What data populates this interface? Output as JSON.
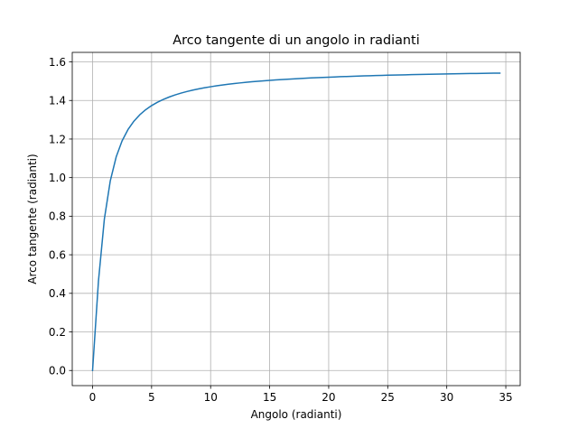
{
  "chart_data": {
    "type": "line",
    "title": "Arco tangente di un angolo in radianti",
    "xlabel": "Angolo (radianti)",
    "ylabel": "Arco tangente (radianti)",
    "xlim": [
      -1.72,
      36.22
    ],
    "ylim": [
      -0.0785,
      1.6493
    ],
    "xticks": [
      0,
      5,
      10,
      15,
      20,
      25,
      30,
      35
    ],
    "yticks": [
      0.0,
      0.2,
      0.4,
      0.6,
      0.8,
      1.0,
      1.2,
      1.4,
      1.6
    ],
    "xtick_labels": [
      "0",
      "5",
      "10",
      "15",
      "20",
      "25",
      "30",
      "35"
    ],
    "ytick_labels": [
      "0.0",
      "0.2",
      "0.4",
      "0.6",
      "0.8",
      "1.0",
      "1.2",
      "1.4",
      "1.6"
    ],
    "grid": true,
    "legend": "none",
    "line_color": "#1f77b4",
    "series": [
      {
        "x": [
          0,
          0.5,
          1.0,
          1.5,
          2.0,
          2.5,
          3.0,
          3.5,
          4.0,
          4.5,
          5.0,
          5.5,
          6.0,
          6.5,
          7.0,
          7.5,
          8.0,
          8.5,
          9.0,
          9.5,
          10.0,
          10.5,
          11.0,
          11.5,
          12.0,
          12.5,
          13.0,
          13.5,
          14.0,
          14.5,
          15.0,
          15.5,
          16.0,
          16.5,
          17.0,
          17.5,
          18.0,
          18.5,
          19.0,
          19.5,
          20.0,
          20.5,
          21.0,
          21.5,
          22.0,
          22.5,
          23.0,
          23.5,
          24.0,
          24.5,
          25.0,
          25.5,
          26.0,
          26.5,
          27.0,
          27.5,
          28.0,
          28.5,
          29.0,
          29.5,
          30.0,
          30.5,
          31.0,
          31.5,
          32.0,
          32.5,
          33.0,
          33.5,
          34.0,
          34.5
        ],
        "y": [
          0.0,
          0.4636,
          0.7854,
          0.9828,
          1.1071,
          1.1903,
          1.249,
          1.2925,
          1.3258,
          1.3521,
          1.3734,
          1.3909,
          1.4056,
          1.4181,
          1.4289,
          1.4382,
          1.4464,
          1.4537,
          1.4601,
          1.4659,
          1.4711,
          1.4758,
          1.4801,
          1.484,
          1.4877,
          1.491,
          1.494,
          1.4969,
          1.4995,
          1.5019,
          1.5042,
          1.5063,
          1.5084,
          1.5102,
          1.512,
          1.5137,
          1.5153,
          1.5168,
          1.5182,
          1.5195,
          1.5208,
          1.522,
          1.5232,
          1.5243,
          1.5254,
          1.5264,
          1.5273,
          1.5283,
          1.5292,
          1.53,
          1.5308,
          1.5316,
          1.5324,
          1.5331,
          1.5338,
          1.5345,
          1.5351,
          1.5357,
          1.5363,
          1.5369,
          1.5375,
          1.538,
          1.5385,
          1.5391,
          1.5396,
          1.54,
          1.5405,
          1.541,
          1.5414,
          1.5418
        ]
      }
    ]
  }
}
